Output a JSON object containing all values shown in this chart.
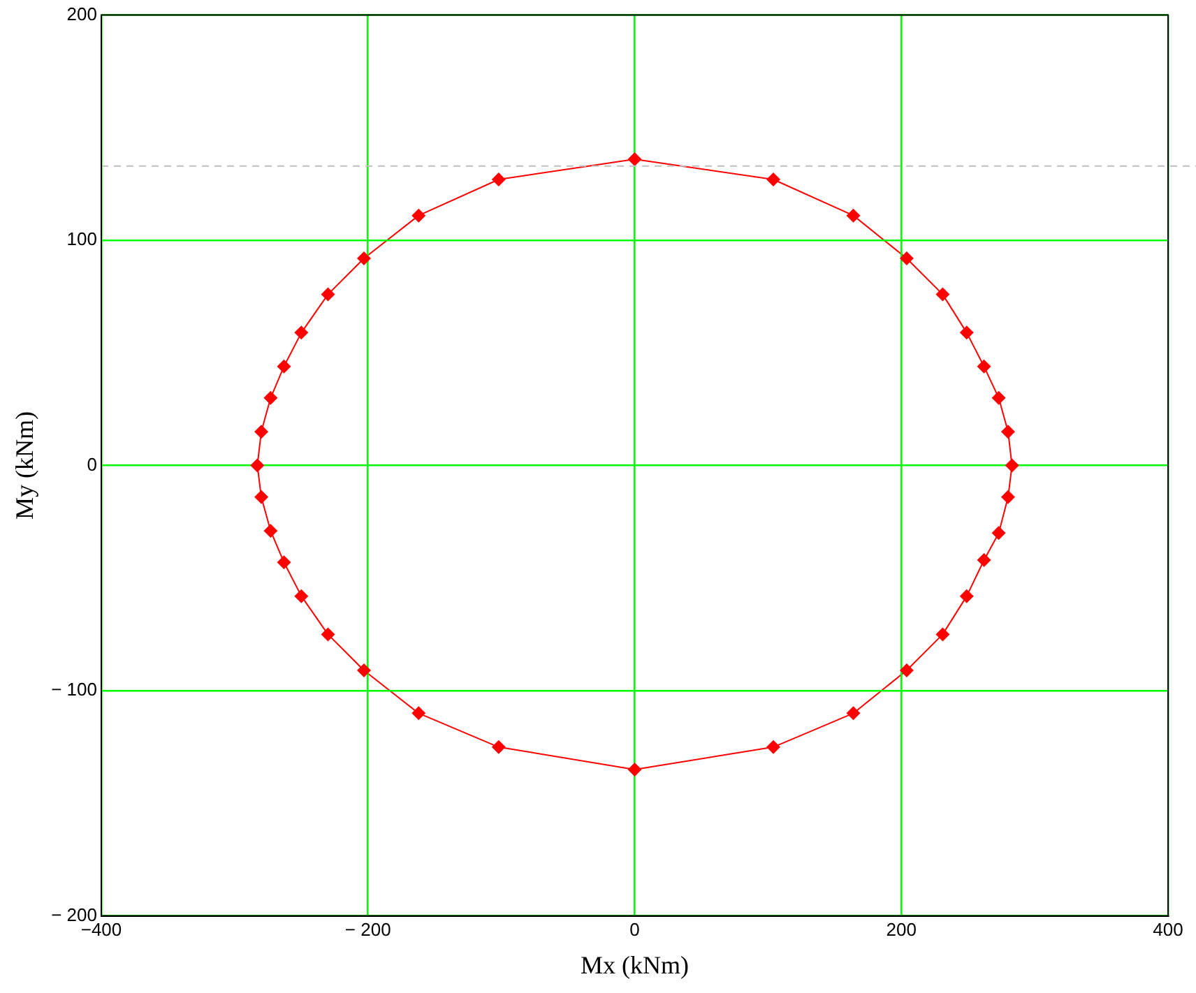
{
  "chart_data": {
    "type": "scatter",
    "xlabel": "Mx (kNm)",
    "ylabel": "My (kNm)",
    "x": [
      0,
      104,
      164,
      204,
      231,
      249,
      262,
      273,
      280,
      283,
      280,
      273,
      262,
      249,
      231,
      204,
      164,
      104,
      0,
      -102,
      -162,
      -203,
      -230,
      -250,
      -263,
      -273,
      -280,
      -283,
      -280,
      -273,
      -263,
      -250,
      -230,
      -203,
      -162,
      -102
    ],
    "series": [
      {
        "color": "#ff0000",
        "values": [
          136,
          127,
          111,
          92,
          76,
          59,
          44,
          30,
          15,
          0,
          -14,
          -30,
          -42,
          -58,
          -75,
          -91,
          -110,
          -125,
          -135,
          -125,
          -110,
          -91,
          -75,
          -58,
          -43,
          -29,
          -14,
          0,
          15,
          30,
          44,
          59,
          76,
          92,
          111,
          127
        ]
      }
    ],
    "xlim": [
      -400,
      400
    ],
    "ylim": [
      -200,
      200
    ],
    "xticks": [
      {
        "value": -400,
        "label": "−400"
      },
      {
        "value": -200,
        "label": "− 200"
      },
      0,
      200,
      400
    ],
    "yticks": [
      {
        "value": -200,
        "label": "− 200"
      },
      {
        "value": -100,
        "label": "− 100"
      },
      0,
      100,
      200
    ],
    "grid": true,
    "marker": "diamond",
    "legend": false,
    "ref_lines": [
      {
        "axis": "y",
        "value": 133,
        "color": "#c0c0c0",
        "line_style": "dashed"
      }
    ]
  }
}
